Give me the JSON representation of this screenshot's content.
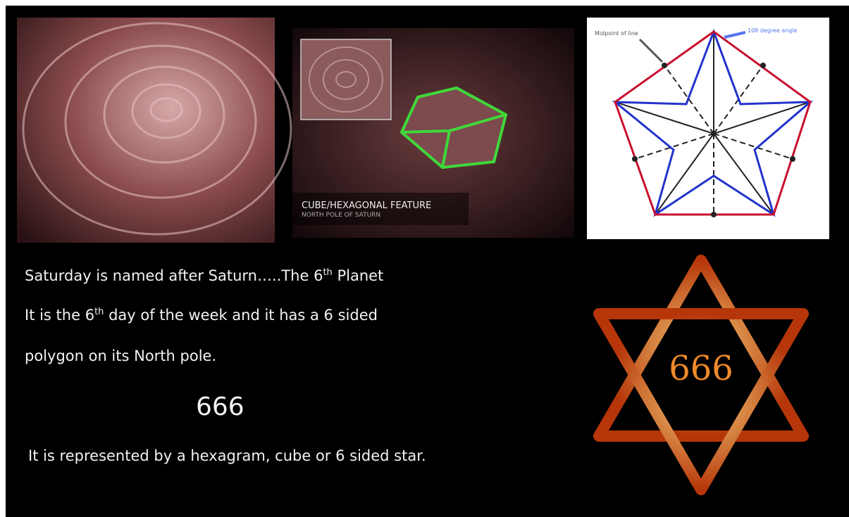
{
  "images": [
    {},
    {
      "caption_title": "CUBE/HEXAGONAL FEATURE",
      "caption_subtitle": "NORTH POLE OF SATURN"
    },
    {
      "labels": [
        "Midpoint of line",
        "108 degree angle"
      ]
    },
    {
      "label": "666"
    }
  ],
  "text": [
    [
      "Saturday is named after Saturn…..The 6",
      "th",
      " Planet"
    ],
    [
      "It is the 6",
      "th",
      " day of the week and it has a 6 sided"
    ],
    [
      "polygon on its North pole."
    ],
    [
      "It is represented by a hexagram, cube or 6 sided star."
    ]
  ],
  "number": "666"
}
